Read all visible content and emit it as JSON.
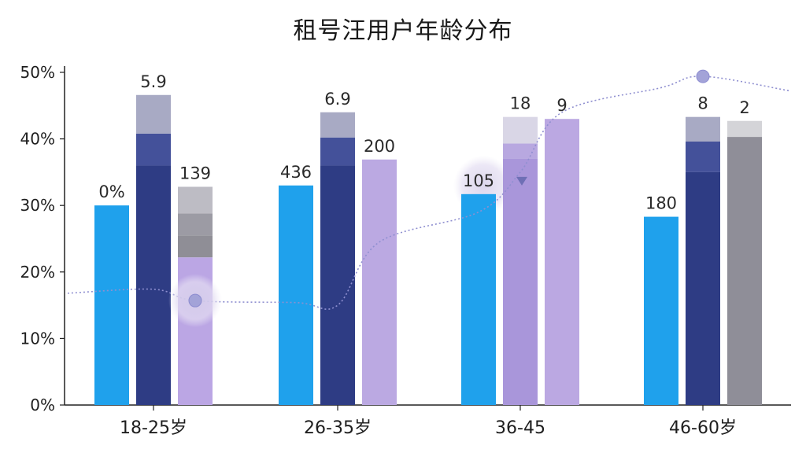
{
  "chart_data": {
    "type": "bar",
    "title": "租号汪用户年龄分布",
    "categories": [
      "18-25岁",
      "26-35岁",
      "36-45",
      "46-60岁"
    ],
    "ylim": [
      0,
      50
    ],
    "yticks": [
      "0%",
      "10%",
      "20%",
      "30%",
      "40%",
      "50%"
    ],
    "grid": false,
    "colors": {
      "bar_blue": "#1fa1ec",
      "bar_navy": "#2f3d86",
      "bar_lavender": "#b9a8e0",
      "bar_gray": "#8e8e96",
      "line": "#8f8fd0"
    },
    "bars": [
      {
        "category": "18-25岁",
        "value": 30,
        "label": "0%",
        "color": "#1fa1ec",
        "segments": [
          {
            "to": 30,
            "color": "#1fa1ec"
          }
        ]
      },
      {
        "category": "18-25岁",
        "value": 46.6,
        "label": "5.9",
        "color": "#2f3d86",
        "segments": [
          {
            "to": 36,
            "color": "#2e3c84"
          },
          {
            "to": 40.8,
            "color": "#44519a"
          },
          {
            "to": 46.6,
            "color": "#a8aac4"
          }
        ]
      },
      {
        "category": "18-25岁",
        "value": 32.8,
        "label": "139",
        "color": "#b9a8e0",
        "segments": [
          {
            "to": 22.2,
            "color": "#bba6e4"
          },
          {
            "to": 25.5,
            "color": "#8f8e96"
          },
          {
            "to": 28.8,
            "color": "#9c9ba4"
          },
          {
            "to": 32.8,
            "color": "#bdbcc4"
          }
        ]
      },
      {
        "category": "26-35岁",
        "value": 33,
        "label": "436",
        "color": "#1fa1ec",
        "segments": [
          {
            "to": 33,
            "color": "#1fa1ec"
          }
        ]
      },
      {
        "category": "26-35岁",
        "value": 44,
        "label": "6.9",
        "color": "#2f3d86",
        "segments": [
          {
            "to": 36,
            "color": "#2e3c84"
          },
          {
            "to": 40.2,
            "color": "#44519a"
          },
          {
            "to": 44,
            "color": "#a8aac4"
          }
        ]
      },
      {
        "category": "26-35岁",
        "value": 36.9,
        "label": "200",
        "color": "#b9a8e0",
        "segments": [
          {
            "to": 36.9,
            "color": "#bba9e2"
          }
        ]
      },
      {
        "category": "36-45",
        "value": 31.7,
        "label": "105",
        "color": "#1fa1ec",
        "segments": [
          {
            "to": 31.7,
            "color": "#1fa1ec"
          }
        ]
      },
      {
        "category": "36-45",
        "value": 43.3,
        "label": "18",
        "color": "#b9a8e0",
        "segments": [
          {
            "to": 37,
            "color": "#a996da"
          },
          {
            "to": 39.3,
            "color": "#b8a8e0"
          },
          {
            "to": 43.3,
            "color": "#d9d6e6"
          }
        ]
      },
      {
        "category": "36-45",
        "value": 43,
        "label": "9",
        "color": "#b9a8e0",
        "segments": [
          {
            "to": 43,
            "color": "#bba8e2"
          }
        ]
      },
      {
        "category": "46-60岁",
        "value": 28.3,
        "label": "180",
        "color": "#1fa1ec",
        "segments": [
          {
            "to": 28.3,
            "color": "#1fa1ec"
          }
        ]
      },
      {
        "category": "46-60岁",
        "value": 43.3,
        "label": "8",
        "color": "#2f3d86",
        "segments": [
          {
            "to": 35,
            "color": "#2e3c84"
          },
          {
            "to": 39.6,
            "color": "#44519a"
          },
          {
            "to": 43.3,
            "color": "#a8aac4"
          }
        ]
      },
      {
        "category": "46-60岁",
        "value": 42.7,
        "label": "2",
        "color": "#8e8e96",
        "segments": [
          {
            "to": 40.3,
            "color": "#8f8e98"
          },
          {
            "to": 42.7,
            "color": "#d4d4d8"
          }
        ]
      }
    ],
    "line": {
      "style": "dotted",
      "points": [
        [
          0,
          16.8
        ],
        [
          1,
          17.4
        ],
        [
          2,
          15.7
        ],
        [
          3,
          15.4
        ],
        [
          4,
          15
        ],
        [
          5,
          24.5
        ],
        [
          6,
          29
        ],
        [
          7,
          35
        ],
        [
          8,
          44
        ],
        [
          9,
          47.7
        ],
        [
          10,
          49.4
        ],
        [
          11,
          47.2
        ]
      ],
      "markers": [
        {
          "index": 2,
          "value": 15.7,
          "halo": true
        },
        {
          "index": 10,
          "value": 49.4,
          "halo": false
        }
      ]
    },
    "decorations": [
      {
        "type": "halo",
        "near_bar": 6,
        "value": 33
      },
      {
        "type": "triangle-marker",
        "near_bar": 7,
        "value": 33.7
      }
    ]
  }
}
